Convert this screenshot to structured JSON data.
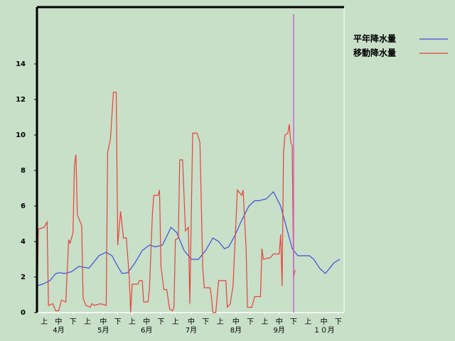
{
  "chart_data": {
    "type": "line",
    "xlim": [
      0,
      213
    ],
    "ylim": [
      0,
      17.2
    ],
    "yticks": [
      0,
      2,
      4,
      6,
      8,
      10,
      12,
      14
    ],
    "xticks": [
      {
        "value": 5,
        "label": "上"
      },
      {
        "value": 15,
        "label": "中"
      },
      {
        "value": 25,
        "label": "下"
      },
      {
        "value": 35,
        "label": "上"
      },
      {
        "value": 46,
        "label": "中"
      },
      {
        "value": 56,
        "label": "下"
      },
      {
        "value": 66,
        "label": "上"
      },
      {
        "value": 76,
        "label": "中"
      },
      {
        "value": 86,
        "label": "下"
      },
      {
        "value": 96,
        "label": "上"
      },
      {
        "value": 107,
        "label": "中"
      },
      {
        "value": 117,
        "label": "下"
      },
      {
        "value": 127,
        "label": "上"
      },
      {
        "value": 138,
        "label": "中"
      },
      {
        "value": 148,
        "label": "下"
      },
      {
        "value": 158,
        "label": "上"
      },
      {
        "value": 168,
        "label": "中"
      },
      {
        "value": 178,
        "label": "下"
      },
      {
        "value": 188,
        "label": "上"
      },
      {
        "value": 199,
        "label": "中"
      },
      {
        "value": 209,
        "label": "下"
      }
    ],
    "month_labels": [
      {
        "value": 15,
        "label": "4月"
      },
      {
        "value": 46,
        "label": "5月"
      },
      {
        "value": 76,
        "label": "6月"
      },
      {
        "value": 107,
        "label": "7月"
      },
      {
        "value": 138,
        "label": "8月"
      },
      {
        "value": 168,
        "label": "9月"
      },
      {
        "value": 199,
        "label": "１０月"
      }
    ],
    "marker_x": 178,
    "marker_color": "#cc66cc",
    "grid": false,
    "legend": "top-right",
    "series": [
      {
        "name": "平年降水量",
        "color": "#3b4fd8",
        "x": [
          0,
          4,
          9,
          13,
          16,
          19,
          24,
          29,
          36,
          38,
          43,
          48,
          52,
          56,
          59,
          63,
          68,
          73,
          78,
          82,
          87,
          93,
          97,
          102,
          107,
          112,
          117,
          122,
          126,
          130,
          133,
          137,
          142,
          147,
          151,
          154,
          159,
          164,
          169,
          174,
          177,
          181,
          189,
          192,
          196,
          200,
          206,
          210
        ],
        "values": [
          1.5,
          1.6,
          1.8,
          2.2,
          2.25,
          2.2,
          2.3,
          2.6,
          2.5,
          2.7,
          3.2,
          3.4,
          3.2,
          2.6,
          2.2,
          2.25,
          2.8,
          3.5,
          3.8,
          3.7,
          3.8,
          4.8,
          4.5,
          3.5,
          3.0,
          3.0,
          3.5,
          4.2,
          4.0,
          3.6,
          3.7,
          4.3,
          5.2,
          6.0,
          6.3,
          6.3,
          6.4,
          6.8,
          6.0,
          4.5,
          3.6,
          3.2,
          3.2,
          3.0,
          2.5,
          2.2,
          2.8,
          3.0
        ]
      },
      {
        "name": "移動降水量",
        "color": "#e8413a",
        "x": [
          0,
          1,
          5,
          7,
          8,
          11,
          13,
          15,
          17,
          20,
          22,
          23,
          25,
          26,
          27,
          28,
          31,
          32,
          34,
          37,
          38,
          40,
          44,
          48,
          49,
          51,
          53,
          55,
          56,
          58,
          60,
          62,
          64,
          65,
          66,
          70,
          71,
          73,
          74,
          77,
          78,
          80,
          81,
          84,
          85,
          86,
          88,
          90,
          92,
          94,
          95,
          96,
          98,
          99,
          101,
          103,
          105,
          106,
          108,
          111,
          113,
          115,
          116,
          120,
          121,
          122,
          124,
          126,
          131,
          132,
          134,
          136,
          139,
          142,
          143,
          145,
          146,
          149,
          151,
          155,
          156,
          157,
          162,
          164,
          168,
          169,
          170,
          171,
          172,
          174,
          175,
          176,
          177,
          178,
          179
        ],
        "values": [
          0,
          4.7,
          4.8,
          5.1,
          0.4,
          0.5,
          0.1,
          0.1,
          0.7,
          0.6,
          4.1,
          3.9,
          4.5,
          8.3,
          8.9,
          5.5,
          4.9,
          0.8,
          0.4,
          0.3,
          0.5,
          0.4,
          0.5,
          0.4,
          9.0,
          9.8,
          12.4,
          12.4,
          3.8,
          5.7,
          4.2,
          4.2,
          2.0,
          0,
          1.6,
          1.6,
          1.8,
          1.8,
          0.6,
          0.6,
          1.3,
          5.5,
          6.6,
          6.6,
          6.9,
          2.6,
          1.3,
          1.3,
          0.2,
          0.1,
          0.3,
          4.1,
          4.2,
          8.6,
          8.6,
          4.6,
          4.8,
          0.5,
          10.1,
          10.1,
          9.6,
          2.5,
          1.4,
          1.4,
          0.9,
          0,
          0,
          1.8,
          1.8,
          0.3,
          0.5,
          1.5,
          6.9,
          6.6,
          6.9,
          3.7,
          0.3,
          0.3,
          0.9,
          0.9,
          3.6,
          3.0,
          3.1,
          3.3,
          3.3,
          4.4,
          1.5,
          9.0,
          10.0,
          10.1,
          10.6,
          9.6,
          9.4,
          2.0,
          2.4
        ]
      }
    ]
  }
}
